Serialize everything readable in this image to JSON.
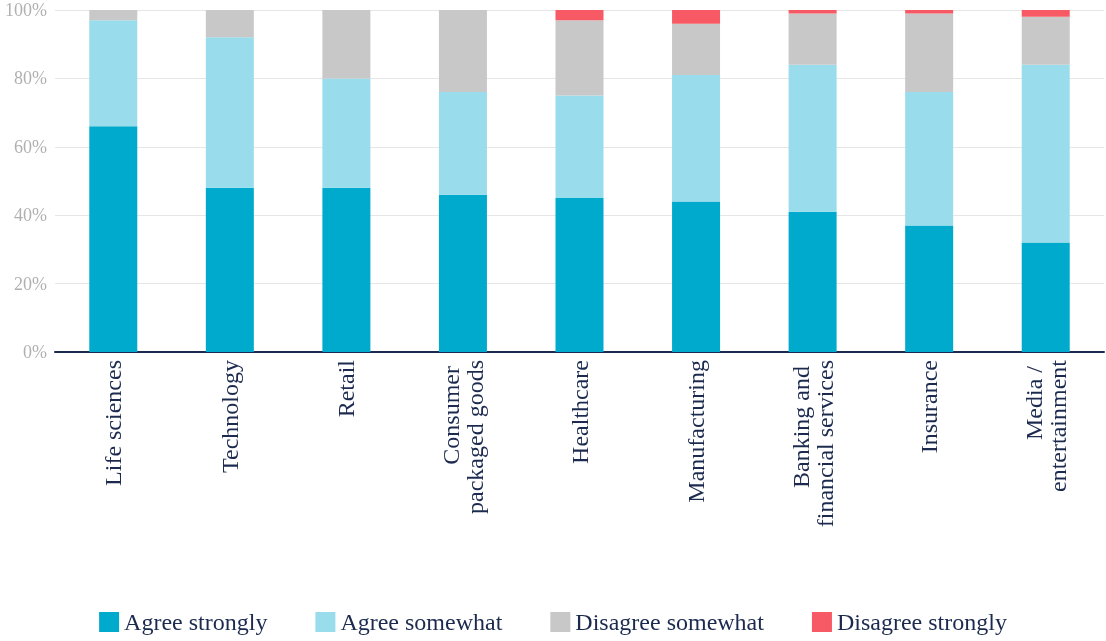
{
  "chart_data": {
    "type": "bar",
    "stacked": true,
    "categories": [
      "Life sciences",
      "Technology",
      "Retail",
      "Consumer packaged goods",
      "Healthcare",
      "Manufacturing",
      "Banking and financial services",
      "Insurance",
      "Media / entertainment"
    ],
    "series": [
      {
        "name": "Agree strongly",
        "color": "#00aacc",
        "values": [
          66,
          48,
          48,
          46,
          45,
          44,
          41,
          37,
          32
        ]
      },
      {
        "name": "Agree somewhat",
        "color": "#99dcec",
        "values": [
          31,
          44,
          32,
          30,
          30,
          37,
          43,
          39,
          52
        ]
      },
      {
        "name": "Disagree somewhat",
        "color": "#c8c8c8",
        "values": [
          3,
          8,
          20,
          24,
          22,
          15,
          15,
          23,
          14
        ]
      },
      {
        "name": "Disagree strongly",
        "color": "#f75a64",
        "values": [
          0,
          0,
          0,
          0,
          3,
          4,
          1,
          1,
          2
        ]
      }
    ],
    "ylim": [
      0,
      100
    ],
    "yticks": [
      {
        "value": 0,
        "label": "0%"
      },
      {
        "value": 20,
        "label": "20%"
      },
      {
        "value": 40,
        "label": "40%"
      },
      {
        "value": 60,
        "label": "60%"
      },
      {
        "value": 80,
        "label": "80%"
      },
      {
        "value": 100,
        "label": "100%"
      }
    ],
    "grid": "y",
    "legend": "bottom"
  }
}
